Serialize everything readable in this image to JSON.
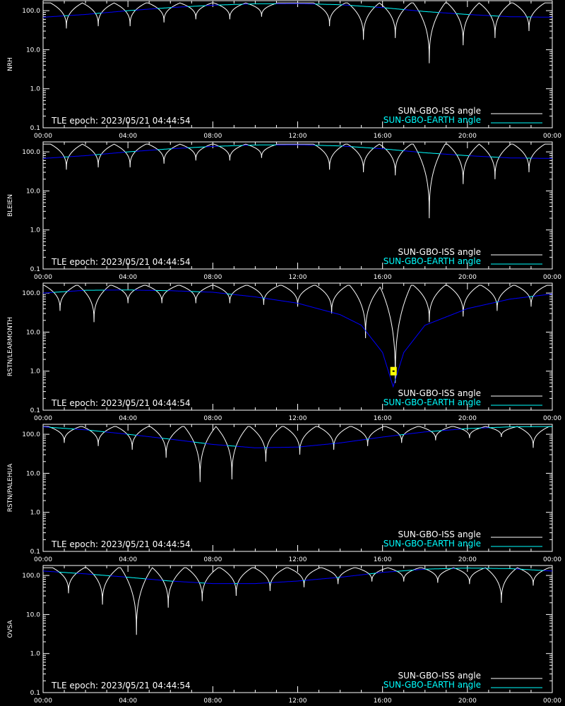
{
  "tle_epoch_text": "TLE epoch: 2023/05/21 04:44:54",
  "legend": {
    "iss_label": "SUN-GBO-ISS angle",
    "earth_label": "SUN-GBO-EARTH angle"
  },
  "colors": {
    "background": "#000000",
    "axes": "#ffffff",
    "iss_line": "#ffffff",
    "earth_line_visible": "#00ffff",
    "earth_line_occulted": "#0000ff",
    "event_marker": "#ffff00"
  },
  "chart_data": [
    {
      "type": "line",
      "ylabel": "NRH",
      "yscale": "log",
      "ylim": [
        0.1,
        180
      ],
      "xlim": [
        0,
        24
      ],
      "x_ticks": [
        "00:00",
        "04:00",
        "08:00",
        "12:00",
        "16:00",
        "20:00",
        "00:00"
      ],
      "y_ticks": [
        "100.0",
        "10.0",
        "1.0",
        "0.1"
      ],
      "grid": false,
      "legend_position": "bottom-right",
      "annotation": "TLE epoch: 2023/05/21 04:44:54",
      "earth_curve": [
        [
          0,
          68
        ],
        [
          2,
          80
        ],
        [
          4,
          100
        ],
        [
          6,
          120
        ],
        [
          8,
          138
        ],
        [
          10,
          150
        ],
        [
          12,
          152
        ],
        [
          14,
          142
        ],
        [
          16,
          120
        ],
        [
          18,
          95
        ],
        [
          20,
          80
        ],
        [
          22,
          70
        ],
        [
          24,
          68
        ]
      ],
      "iss_minima": [
        [
          1.1,
          35
        ],
        [
          2.6,
          40
        ],
        [
          4.1,
          40
        ],
        [
          5.7,
          50
        ],
        [
          7.2,
          60
        ],
        [
          8.8,
          60
        ],
        [
          10.3,
          70
        ],
        [
          13.5,
          40
        ],
        [
          15.1,
          18
        ],
        [
          16.6,
          20
        ],
        [
          18.2,
          4.5
        ],
        [
          19.8,
          13
        ],
        [
          21.3,
          20
        ],
        [
          22.9,
          30
        ]
      ],
      "iss_max": 158,
      "events": []
    },
    {
      "type": "line",
      "ylabel": "BLEIEN",
      "yscale": "log",
      "ylim": [
        0.1,
        180
      ],
      "xlim": [
        0,
        24
      ],
      "x_ticks": [
        "00:00",
        "04:00",
        "08:00",
        "12:00",
        "16:00",
        "20:00",
        "00:00"
      ],
      "y_ticks": [
        "100.0",
        "10.0",
        "1.0",
        "0.1"
      ],
      "grid": false,
      "legend_position": "bottom-right",
      "annotation": "TLE epoch: 2023/05/21 04:44:54",
      "earth_curve": [
        [
          0,
          68
        ],
        [
          2,
          80
        ],
        [
          4,
          100
        ],
        [
          6,
          120
        ],
        [
          8,
          138
        ],
        [
          10,
          150
        ],
        [
          12,
          152
        ],
        [
          14,
          142
        ],
        [
          16,
          120
        ],
        [
          18,
          95
        ],
        [
          20,
          80
        ],
        [
          22,
          70
        ],
        [
          24,
          68
        ]
      ],
      "iss_minima": [
        [
          1.1,
          35
        ],
        [
          2.6,
          40
        ],
        [
          4.1,
          40
        ],
        [
          5.7,
          50
        ],
        [
          7.2,
          60
        ],
        [
          8.8,
          60
        ],
        [
          10.3,
          70
        ],
        [
          13.5,
          35
        ],
        [
          15.1,
          30
        ],
        [
          16.6,
          25
        ],
        [
          18.2,
          2
        ],
        [
          19.8,
          15
        ],
        [
          21.3,
          20
        ],
        [
          22.9,
          30
        ]
      ],
      "iss_max": 158,
      "events": []
    },
    {
      "type": "line",
      "ylabel": "RSTN/LEARMONTH",
      "yscale": "log",
      "ylim": [
        0.1,
        180
      ],
      "xlim": [
        0,
        24
      ],
      "x_ticks": [
        "00:00",
        "04:00",
        "08:00",
        "12:00",
        "16:00",
        "20:00",
        "00:00"
      ],
      "y_ticks": [
        "100.0",
        "10.0",
        "1.0",
        "0.1"
      ],
      "grid": false,
      "legend_position": "bottom-right",
      "annotation": "TLE epoch: 2023/05/21 04:44:54",
      "earth_curve": [
        [
          0,
          100
        ],
        [
          2,
          118
        ],
        [
          4,
          120
        ],
        [
          6,
          115
        ],
        [
          8,
          105
        ],
        [
          10,
          80
        ],
        [
          12,
          55
        ],
        [
          14,
          28
        ],
        [
          15,
          15
        ],
        [
          16,
          3
        ],
        [
          16.5,
          0.4
        ],
        [
          17,
          3
        ],
        [
          18,
          15
        ],
        [
          20,
          40
        ],
        [
          22,
          70
        ],
        [
          24,
          95
        ]
      ],
      "iss_minima": [
        [
          0.8,
          35
        ],
        [
          2.4,
          18
        ],
        [
          4.0,
          55
        ],
        [
          5.6,
          55
        ],
        [
          7.2,
          55
        ],
        [
          8.8,
          55
        ],
        [
          10.4,
          50
        ],
        [
          12.0,
          45
        ],
        [
          13.6,
          30
        ],
        [
          15.2,
          7
        ],
        [
          16.6,
          0.5
        ],
        [
          18.2,
          18
        ],
        [
          19.8,
          25
        ],
        [
          21.4,
          35
        ],
        [
          23.0,
          45
        ]
      ],
      "iss_max": 158,
      "events": [
        [
          16.5,
          1.0
        ]
      ]
    },
    {
      "type": "line",
      "ylabel": "RSTN/PALEHUA",
      "yscale": "log",
      "ylim": [
        0.1,
        180
      ],
      "xlim": [
        0,
        24
      ],
      "x_ticks": [
        "00:00",
        "04:00",
        "08:00",
        "12:00",
        "16:00",
        "20:00",
        "00:00"
      ],
      "y_ticks": [
        "100.0",
        "10.0",
        "1.0",
        "0.1"
      ],
      "grid": false,
      "legend_position": "bottom-right",
      "annotation": "TLE epoch: 2023/05/21 04:44:54",
      "earth_curve": [
        [
          0,
          155
        ],
        [
          2,
          130
        ],
        [
          4,
          100
        ],
        [
          6,
          75
        ],
        [
          8,
          55
        ],
        [
          10,
          45
        ],
        [
          12,
          47
        ],
        [
          14,
          60
        ],
        [
          16,
          85
        ],
        [
          18,
          115
        ],
        [
          20,
          140
        ],
        [
          22,
          155
        ],
        [
          24,
          158
        ]
      ],
      "iss_minima": [
        [
          1.0,
          60
        ],
        [
          2.6,
          50
        ],
        [
          4.2,
          40
        ],
        [
          5.8,
          25
        ],
        [
          7.4,
          6
        ],
        [
          8.9,
          7
        ],
        [
          10.5,
          20
        ],
        [
          12.1,
          30
        ],
        [
          13.7,
          40
        ],
        [
          15.3,
          50
        ],
        [
          16.9,
          60
        ],
        [
          18.5,
          70
        ],
        [
          20.1,
          80
        ],
        [
          21.6,
          85
        ],
        [
          23.1,
          45
        ]
      ],
      "iss_max": 158,
      "events": []
    },
    {
      "type": "line",
      "ylabel": "OVSA",
      "yscale": "log",
      "ylim": [
        0.1,
        180
      ],
      "xlim": [
        0,
        24
      ],
      "x_ticks": [
        "00:00",
        "04:00",
        "08:00",
        "12:00",
        "16:00",
        "20:00",
        "00:00"
      ],
      "y_ticks": [
        "100.0",
        "10.0",
        "1.0",
        "0.1"
      ],
      "grid": false,
      "legend_position": "bottom-right",
      "annotation": "TLE epoch: 2023/05/21 04:44:54",
      "earth_curve": [
        [
          0,
          130
        ],
        [
          2,
          110
        ],
        [
          4,
          90
        ],
        [
          6,
          72
        ],
        [
          8,
          62
        ],
        [
          10,
          62
        ],
        [
          12,
          72
        ],
        [
          14,
          90
        ],
        [
          16,
          120
        ],
        [
          18,
          145
        ],
        [
          20,
          155
        ],
        [
          22,
          150
        ],
        [
          24,
          130
        ]
      ],
      "iss_minima": [
        [
          1.2,
          35
        ],
        [
          2.8,
          18
        ],
        [
          4.4,
          3
        ],
        [
          5.9,
          15
        ],
        [
          7.5,
          22
        ],
        [
          9.1,
          30
        ],
        [
          10.7,
          40
        ],
        [
          12.3,
          50
        ],
        [
          13.9,
          60
        ],
        [
          15.5,
          70
        ],
        [
          17.0,
          70
        ],
        [
          18.6,
          65
        ],
        [
          20.1,
          60
        ],
        [
          21.6,
          20
        ],
        [
          23.1,
          55
        ]
      ],
      "iss_max": 158,
      "events": []
    }
  ]
}
